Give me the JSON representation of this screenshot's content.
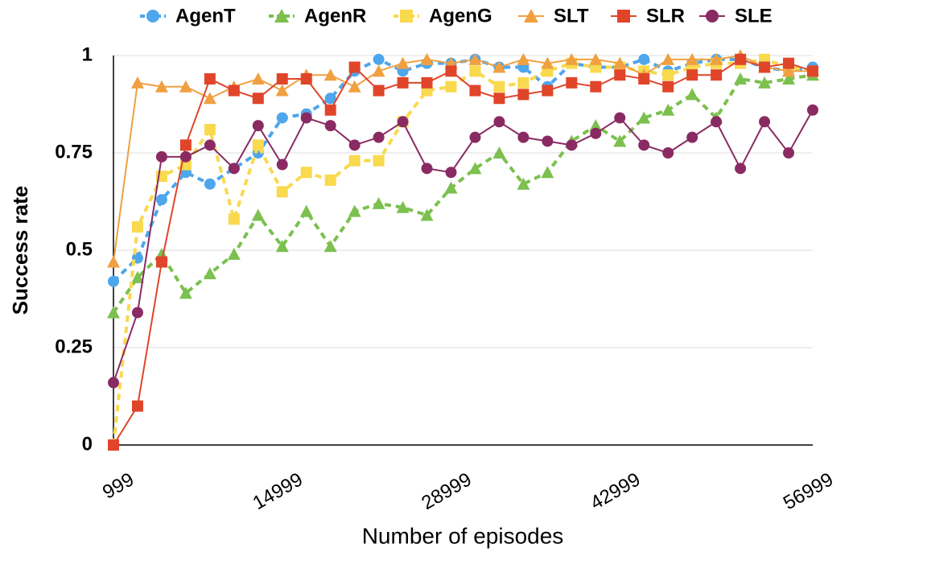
{
  "chart_data": {
    "type": "line",
    "x_label": "Number of episodes",
    "y_label": "Success rate",
    "categories": [
      "999",
      null,
      null,
      null,
      null,
      null,
      null,
      "14999",
      null,
      null,
      null,
      null,
      null,
      null,
      "28999",
      null,
      null,
      null,
      null,
      null,
      null,
      "42999",
      null,
      null,
      null,
      null,
      null,
      null,
      null,
      "56999"
    ],
    "ylim": [
      0,
      1
    ],
    "yticks": [
      0,
      0.25,
      0.5,
      0.75,
      1
    ],
    "grid": true,
    "legend": "top",
    "series": [
      {
        "name": "AgenT",
        "color": "#4ea6ec",
        "dashed": true,
        "marker": "circle",
        "values": [
          0.42,
          0.48,
          0.63,
          0.7,
          0.67,
          0.71,
          0.75,
          0.84,
          0.85,
          0.89,
          0.96,
          0.99,
          0.96,
          0.98,
          0.98,
          0.99,
          0.97,
          0.97,
          0.92,
          0.98,
          0.97,
          0.97,
          0.99,
          0.96,
          0.98,
          0.99,
          0.99,
          0.97,
          0.96,
          0.97
        ]
      },
      {
        "name": "AgenR",
        "color": "#7cc04f",
        "dashed": true,
        "marker": "triangle",
        "values": [
          0.34,
          0.43,
          0.49,
          0.39,
          0.44,
          0.49,
          0.59,
          0.51,
          0.6,
          0.51,
          0.6,
          0.62,
          0.61,
          0.59,
          0.66,
          0.71,
          0.75,
          0.67,
          0.7,
          0.78,
          0.82,
          0.78,
          0.84,
          0.86,
          0.9,
          0.84,
          0.94,
          0.93,
          0.94,
          0.95
        ]
      },
      {
        "name": "AgenG",
        "color": "#f9d94e",
        "dashed": true,
        "marker": "square",
        "values": [
          0,
          0.56,
          0.69,
          0.72,
          0.81,
          0.58,
          0.77,
          0.65,
          0.7,
          0.68,
          0.73,
          0.73,
          0.83,
          0.91,
          0.92,
          0.96,
          0.92,
          0.93,
          0.96,
          0.98,
          0.97,
          0.97,
          0.96,
          0.95,
          0.97,
          0.98,
          0.98,
          0.99,
          0.97,
          0.96
        ]
      },
      {
        "name": "SLT",
        "color": "#f0a040",
        "dashed": false,
        "marker": "triangle",
        "values": [
          0.47,
          0.93,
          0.92,
          0.92,
          0.89,
          0.92,
          0.94,
          0.91,
          0.95,
          0.95,
          0.92,
          0.96,
          0.98,
          0.99,
          0.98,
          0.99,
          0.97,
          0.99,
          0.98,
          0.99,
          0.99,
          0.98,
          0.95,
          0.99,
          0.99,
          0.99,
          1.0,
          0.97,
          0.96,
          0.96
        ]
      },
      {
        "name": "SLR",
        "color": "#e0452a",
        "dashed": false,
        "marker": "square",
        "values": [
          0,
          0.1,
          0.47,
          0.77,
          0.94,
          0.91,
          0.89,
          0.94,
          0.94,
          0.86,
          0.97,
          0.91,
          0.93,
          0.93,
          0.96,
          0.91,
          0.89,
          0.9,
          0.91,
          0.93,
          0.92,
          0.95,
          0.94,
          0.92,
          0.95,
          0.95,
          0.99,
          0.97,
          0.98,
          0.96
        ]
      },
      {
        "name": "SLE",
        "color": "#8a2a62",
        "dashed": false,
        "marker": "circle",
        "values": [
          0.16,
          0.34,
          0.74,
          0.74,
          0.77,
          0.71,
          0.82,
          0.72,
          0.84,
          0.82,
          0.77,
          0.79,
          0.83,
          0.71,
          0.7,
          0.79,
          0.83,
          0.79,
          0.78,
          0.77,
          0.8,
          0.84,
          0.77,
          0.75,
          0.79,
          0.83,
          0.71,
          0.83,
          0.75,
          0.86
        ]
      }
    ]
  }
}
